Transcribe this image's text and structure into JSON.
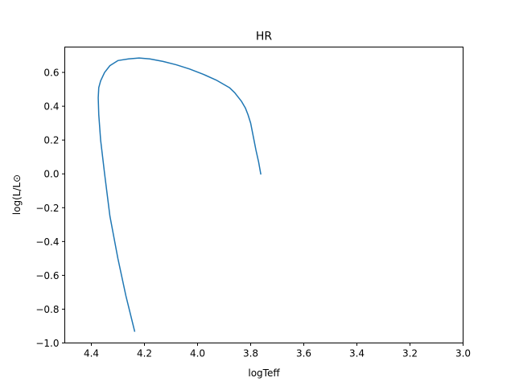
{
  "chart_data": {
    "type": "line",
    "title": "HR",
    "xlabel": "logTeff",
    "ylabel": "log(L/L⊙",
    "xlim": [
      4.5,
      3.0
    ],
    "ylim": [
      -1.0,
      0.75
    ],
    "x_inverted": true,
    "grid": false,
    "legend": "none",
    "x_ticks": [
      4.4,
      4.2,
      4.0,
      3.8,
      3.6,
      3.4,
      3.2,
      3.0
    ],
    "x_tick_labels": [
      "4.4",
      "4.2",
      "4.0",
      "3.8",
      "3.6",
      "3.4",
      "3.2",
      "3.0"
    ],
    "y_ticks": [
      -1.0,
      -0.8,
      -0.6,
      -0.4,
      -0.2,
      0.0,
      0.2,
      0.4,
      0.6
    ],
    "y_tick_labels": [
      "−1.0",
      "−0.8",
      "−0.6",
      "−0.4",
      "−0.2",
      "0.0",
      "0.2",
      "0.4",
      "0.6"
    ],
    "series": [
      {
        "color": "#1f77b4",
        "x": [
          4.237,
          4.27,
          4.3,
          4.33,
          4.35,
          4.365,
          4.372,
          4.374,
          4.372,
          4.365,
          4.35,
          4.33,
          4.3,
          4.26,
          4.22,
          4.18,
          4.13,
          4.08,
          4.03,
          3.98,
          3.93,
          3.88,
          3.86,
          3.835,
          3.82,
          3.81,
          3.8,
          3.79,
          3.78,
          3.77,
          3.762
        ],
        "y": [
          -0.93,
          -0.72,
          -0.5,
          -0.25,
          0.0,
          0.2,
          0.35,
          0.45,
          0.51,
          0.55,
          0.6,
          0.64,
          0.67,
          0.68,
          0.685,
          0.68,
          0.665,
          0.645,
          0.62,
          0.59,
          0.555,
          0.51,
          0.48,
          0.43,
          0.39,
          0.35,
          0.3,
          0.22,
          0.14,
          0.07,
          0.0
        ]
      }
    ]
  }
}
